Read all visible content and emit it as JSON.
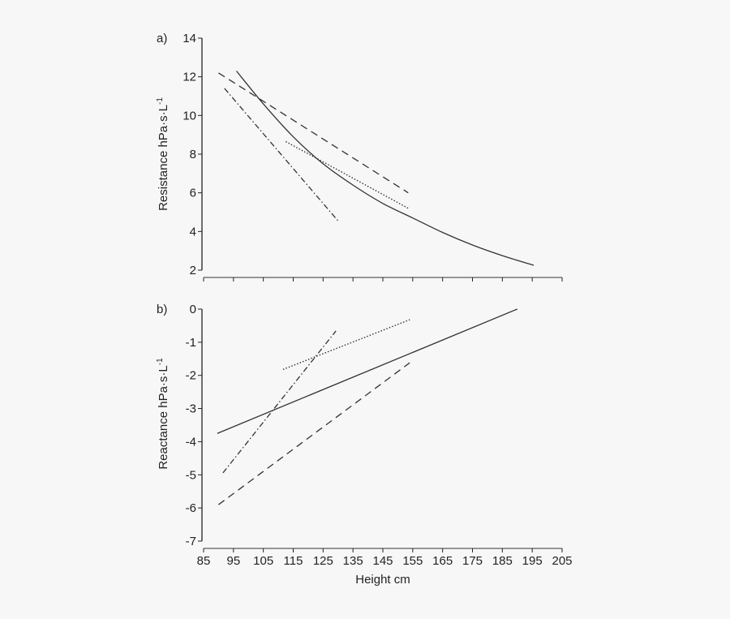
{
  "figure": {
    "xlabel": "Height cm",
    "background": "#f7f7f7",
    "line_color": "#333333"
  },
  "chart_data": [
    {
      "type": "line",
      "panel_label": "a)",
      "title": "",
      "xlabel": "Height cm",
      "ylabel": "Resistance hPa·s·L",
      "ylabel_superscript": "-1",
      "xlim": [
        85,
        205
      ],
      "ylim": [
        2,
        14
      ],
      "xticks": [
        "85",
        "95",
        "105",
        "115",
        "125",
        "135",
        "145",
        "155",
        "165",
        "175",
        "185",
        "195",
        "205"
      ],
      "yticks": [
        "14",
        "12",
        "10",
        "8",
        "6",
        "4",
        "2"
      ],
      "grid": false,
      "legend": null,
      "series": [
        {
          "name": "solid",
          "style": "solid",
          "x": [
            96,
            105,
            115,
            125,
            135,
            145,
            155,
            165,
            175,
            185,
            195.5
          ],
          "y": [
            12.3,
            10.6,
            8.9,
            7.5,
            6.4,
            5.45,
            4.7,
            3.95,
            3.3,
            2.75,
            2.25
          ]
        },
        {
          "name": "dashed",
          "style": "dashed",
          "x": [
            90,
            153.5
          ],
          "y": [
            12.2,
            6.0
          ]
        },
        {
          "name": "dash-dot",
          "style": "dash-dot",
          "x": [
            92,
            130
          ],
          "y": [
            11.4,
            4.55
          ]
        },
        {
          "name": "dotted",
          "style": "dotted",
          "x": [
            112.5,
            153.5
          ],
          "y": [
            8.65,
            5.2
          ]
        }
      ]
    },
    {
      "type": "line",
      "panel_label": "b)",
      "title": "",
      "xlabel": "Height cm",
      "ylabel": "Reactance hPa·s·L",
      "ylabel_superscript": "-1",
      "xlim": [
        85,
        205
      ],
      "ylim": [
        -7,
        0
      ],
      "xticks": [
        "85",
        "95",
        "105",
        "115",
        "125",
        "135",
        "145",
        "155",
        "165",
        "175",
        "185",
        "195",
        "205"
      ],
      "yticks": [
        "0",
        "-1",
        "-2",
        "-3",
        "-4",
        "-5",
        "-6",
        "-7"
      ],
      "grid": false,
      "legend": null,
      "series": [
        {
          "name": "solid",
          "style": "solid",
          "x": [
            89.6,
            190
          ],
          "y": [
            -3.75,
            0.0
          ]
        },
        {
          "name": "dashed",
          "style": "dashed",
          "x": [
            90,
            154
          ],
          "y": [
            -5.9,
            -1.62
          ]
        },
        {
          "name": "dash-dot",
          "style": "dash-dot",
          "x": [
            91.5,
            129.3
          ],
          "y": [
            -4.94,
            -0.66
          ]
        },
        {
          "name": "dotted",
          "style": "dotted",
          "x": [
            111.6,
            154
          ],
          "y": [
            -1.82,
            -0.32
          ]
        }
      ]
    }
  ]
}
